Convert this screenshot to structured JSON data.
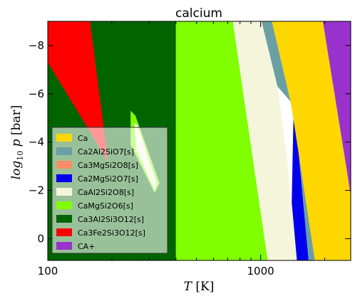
{
  "chart_data": {
    "type": "area",
    "title": "calcium",
    "xlabel": "T [K]",
    "ylabel": "log10 p [bar]",
    "xscale": "log",
    "xlim": [
      100,
      2650
    ],
    "ylim": [
      0.9,
      -9.0
    ],
    "x_ticks": [
      100,
      1000
    ],
    "x_tick_labels": [
      "100",
      "1000"
    ],
    "y_ticks": [
      -8,
      -6,
      -4,
      -2,
      0
    ],
    "y_tick_labels": [
      "−8",
      "−6",
      "−4",
      "−2",
      "0"
    ],
    "grid": false,
    "legend_position": "lower-left",
    "legend": [
      {
        "name": "Ca",
        "color": "#ffd700"
      },
      {
        "name": "Ca2Al2SiO7[s]",
        "color": "#6a9fa4"
      },
      {
        "name": "Ca3MgSi2O8[s]",
        "color": "#ff8c69"
      },
      {
        "name": "Ca2MgSi2O7[s]",
        "color": "#0000ee"
      },
      {
        "name": "CaAl2Si2O8[s]",
        "color": "#f5f5dc"
      },
      {
        "name": "CaMgSi2O6[s]",
        "color": "#7fff00"
      },
      {
        "name": "Ca3Al2Si3O12[s]",
        "color": "#006400"
      },
      {
        "name": "Ca3Fe2Si3O12[s]",
        "color": "#ff0000"
      },
      {
        "name": "CA+",
        "color": "#9932cc"
      }
    ],
    "regions": [
      {
        "phase": "Ca3Al2Si3O12[s]",
        "color": "#006400",
        "boundary": [
          [
            100,
            -9.0
          ],
          [
            400,
            -9.0
          ],
          [
            400,
            0.9
          ],
          [
            100,
            0.9
          ]
        ]
      },
      {
        "phase": "Ca3Fe2Si3O12[s]",
        "color": "#ff0000",
        "boundary": [
          [
            115,
            -9.0
          ],
          [
            158,
            -9.0
          ],
          [
            192,
            -3.2
          ],
          [
            100,
            -7.3
          ],
          [
            100,
            -9.0
          ]
        ]
      },
      {
        "phase": "CaMgSi2O6[s]",
        "color": "#7fff00",
        "boundary": [
          [
            400,
            -9.0
          ],
          [
            740,
            -9.0
          ],
          [
            1080,
            0.9
          ],
          [
            400,
            0.9
          ]
        ]
      },
      {
        "phase": "CaMgSi2O6[s]",
        "color": "#7fff00",
        "boundary": [
          [
            245,
            -5.3
          ],
          [
            258,
            -5.1
          ],
          [
            335,
            -2.3
          ],
          [
            318,
            -1.9
          ],
          [
            245,
            -3.9
          ]
        ]
      },
      {
        "phase": "CaAl2Si2O8[s]",
        "color": "#f5f5dc",
        "boundary": [
          [
            740,
            -9.0
          ],
          [
            1010,
            -9.0
          ],
          [
            1200,
            -6.3
          ],
          [
            1330,
            -3.3
          ],
          [
            1480,
            0.9
          ],
          [
            1080,
            0.9
          ]
        ]
      },
      {
        "phase": "CaAl2Si2O8[s]",
        "color": "#f5f5dc",
        "boundary": [
          [
            255,
            -4.8
          ],
          [
            265,
            -4.7
          ],
          [
            325,
            -2.3
          ],
          [
            318,
            -2.0
          ],
          [
            260,
            -3.7
          ]
        ]
      },
      {
        "phase": "Ca2MgSi2O7[s]",
        "color": "#0000ee",
        "boundary": [
          [
            1430,
            -5.5
          ],
          [
            1440,
            -5.5
          ],
          [
            1680,
            0.9
          ],
          [
            1480,
            0.9
          ],
          [
            1400,
            -1.5
          ]
        ]
      },
      {
        "phase": "Ca2Al2SiO7[s]",
        "color": "#6a9fa4",
        "boundary": [
          [
            1010,
            -9.0
          ],
          [
            1130,
            -9.0
          ],
          [
            1390,
            -5.6
          ],
          [
            1800,
            0.9
          ],
          [
            1680,
            0.9
          ],
          [
            1440,
            -5.5
          ],
          [
            1200,
            -6.3
          ]
        ]
      },
      {
        "phase": "Ca",
        "color": "#ffd700",
        "boundary": [
          [
            1130,
            -9.0
          ],
          [
            1960,
            -9.0
          ],
          [
            2480,
            -3.4
          ],
          [
            2650,
            -1.8
          ],
          [
            2650,
            0.9
          ],
          [
            1800,
            0.9
          ],
          [
            1390,
            -5.6
          ]
        ]
      },
      {
        "phase": "CA+",
        "color": "#9932cc",
        "boundary": [
          [
            1960,
            -9.0
          ],
          [
            2650,
            -9.0
          ],
          [
            2650,
            -1.8
          ],
          [
            2480,
            -3.4
          ]
        ]
      }
    ]
  }
}
